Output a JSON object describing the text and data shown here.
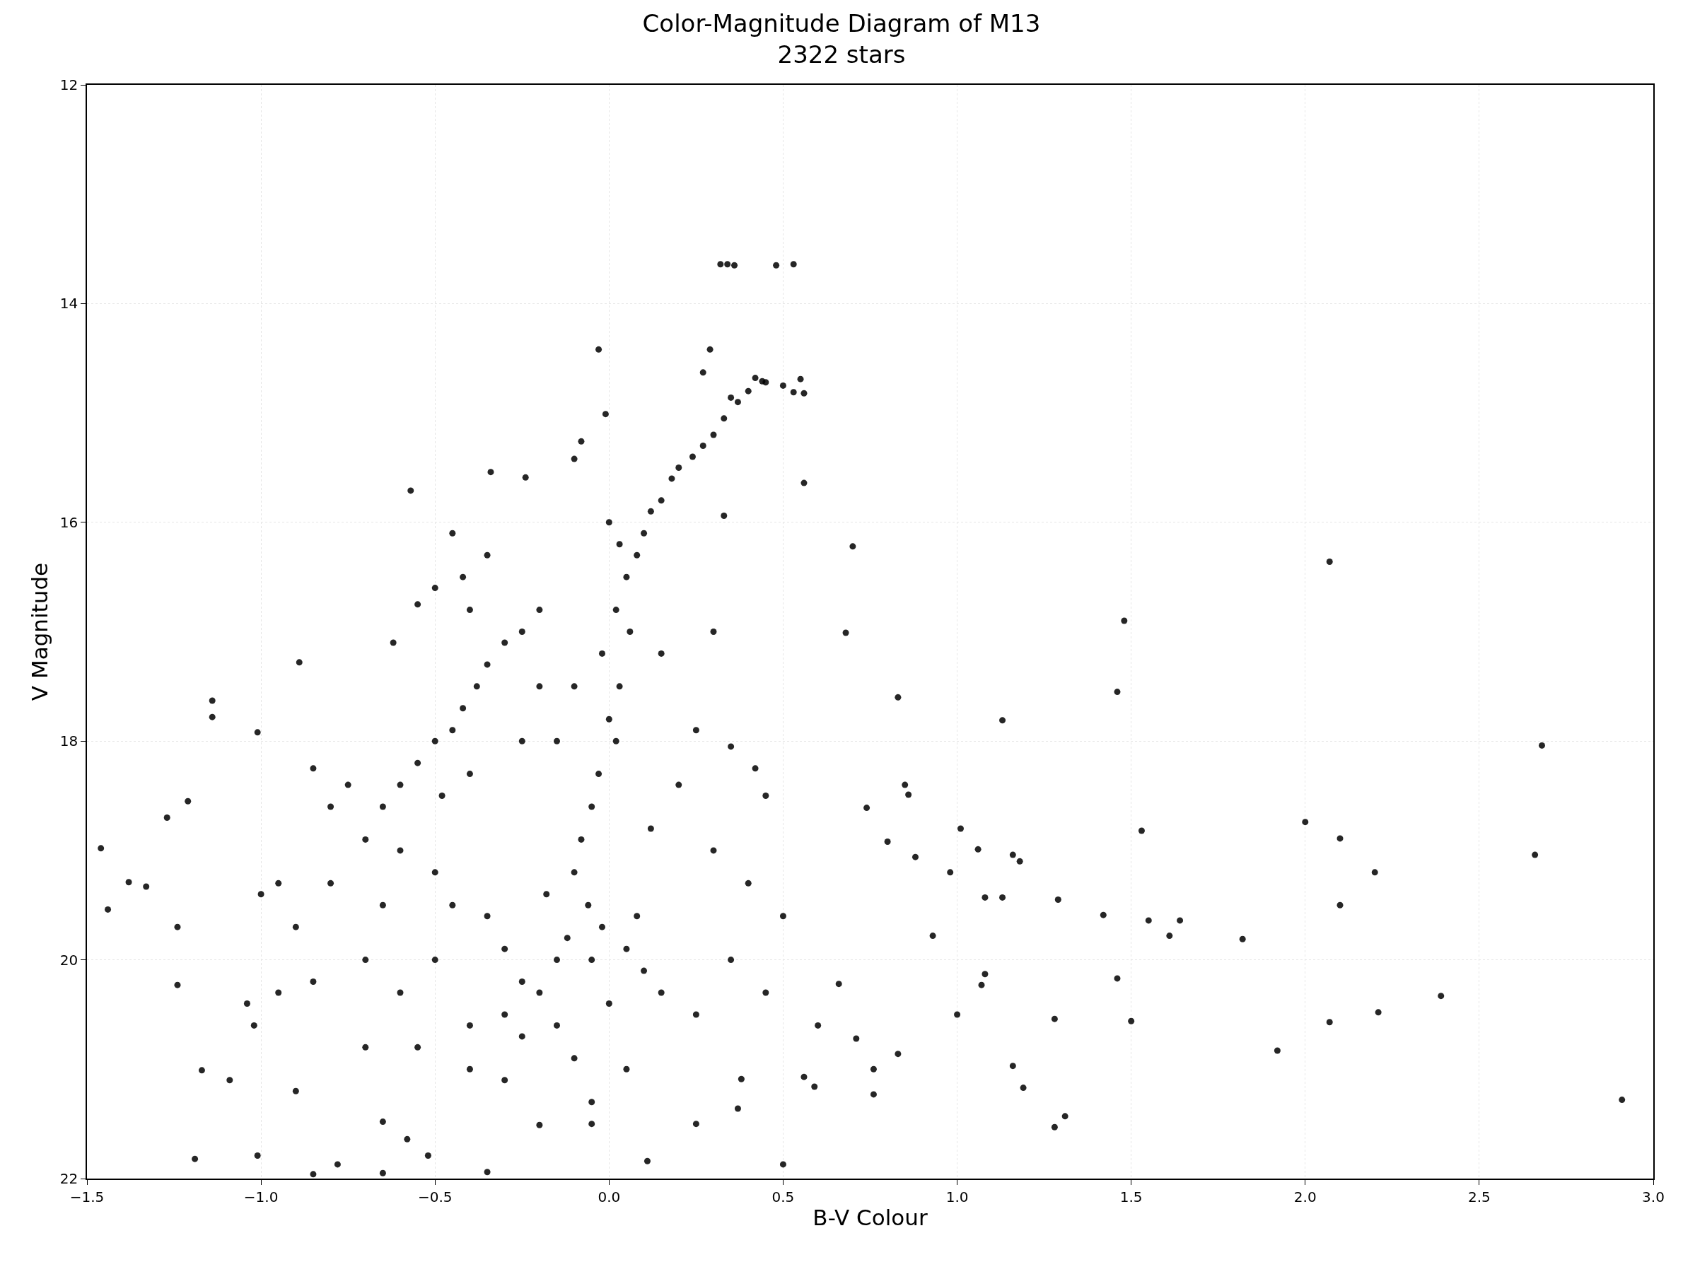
{
  "chart_data": {
    "type": "scatter",
    "title": "Color-Magnitude Diagram of M13",
    "subtitle": "2322 stars",
    "xlabel": "B-V Colour",
    "ylabel": "V Magnitude",
    "xlim": [
      -1.5,
      3.0
    ],
    "ylim": [
      22,
      12
    ],
    "xticks": [
      {
        "value": -1.5,
        "label": "−1.5"
      },
      {
        "value": -1.0,
        "label": "−1.0"
      },
      {
        "value": -0.5,
        "label": "−0.5"
      },
      {
        "value": 0,
        "label": "0.0"
      },
      {
        "value": 0.5,
        "label": "0.5"
      },
      {
        "value": 1.0,
        "label": "1.0"
      },
      {
        "value": 1.5,
        "label": "1.5"
      },
      {
        "value": 2.0,
        "label": "2.0"
      },
      {
        "value": 2.5,
        "label": "2.5"
      },
      {
        "value": 3.0,
        "label": "3.0"
      }
    ],
    "yticks": [
      12,
      14,
      16,
      18,
      20,
      22
    ],
    "grid": true,
    "marker": "circle",
    "series": [
      {
        "color": "#000000",
        "x": [
          0.32,
          0.34,
          0.36,
          0.48,
          0.53,
          -0.03,
          0.29,
          -0.01,
          0.42,
          0.44,
          0.53,
          0.56,
          0.55,
          0.27,
          0.35,
          -0.08,
          -0.1,
          -0.34,
          -0.24,
          -0.57,
          0.56,
          0.33,
          0.7,
          2.07,
          1.48,
          0.68,
          1.46,
          1.13,
          0.83,
          2.68,
          -0.89,
          -1.14,
          -1.14,
          -1.01,
          -1.46,
          -1.44,
          -1.38,
          -1.33,
          -1.27,
          -1.21,
          -1.24,
          -1.24,
          -1.17,
          -1.19,
          -1.09,
          -1.01,
          -0.85,
          -0.78,
          -0.65,
          -0.35,
          0.11,
          -0.58,
          -0.52,
          -0.65,
          -0.2,
          -0.05,
          0.74,
          0.85,
          0.86,
          0.8,
          0.88,
          1.01,
          0.98,
          1.06,
          1.16,
          1.18,
          1.08,
          1.13,
          1.29,
          1.42,
          1.53,
          1.55,
          1.64,
          1.61,
          1.82,
          2.0,
          2.1,
          2.2,
          2.1,
          2.66,
          2.39,
          2.21,
          2.07,
          1.92,
          1.5,
          1.46,
          1.28,
          1.0,
          1.08,
          1.07,
          0.93,
          2.91,
          1.16,
          1.19,
          1.28,
          1.31,
          0.83,
          0.76,
          0.76,
          0.71,
          0.66,
          0.56,
          0.59,
          0.5,
          0.37,
          0.38,
          0.25,
          0.0,
          0.03,
          0.05,
          0.08,
          0.1,
          0.12,
          0.15,
          0.18,
          0.2,
          0.24,
          0.27,
          0.3,
          0.33,
          0.37,
          0.4,
          0.45,
          0.5,
          0.02,
          0.06,
          -0.02,
          0.03,
          0.0,
          0.02,
          -0.03,
          -0.05,
          -0.08,
          -0.1,
          -0.06,
          -0.02,
          0.05,
          -0.12,
          -0.15,
          0.1,
          -0.2,
          0.15,
          -0.3,
          0.25,
          -0.25,
          -0.1,
          0.05,
          -0.05,
          0.0,
          -0.05,
          0.08,
          -0.18,
          0.12,
          0.2,
          -0.15,
          -0.1,
          0.15,
          -0.2,
          -0.25,
          0.3,
          0.25,
          0.35,
          0.42,
          0.45,
          0.3,
          0.4,
          0.5,
          0.35,
          0.45,
          0.6,
          -0.55,
          -0.5,
          -0.45,
          -0.42,
          -0.38,
          -0.35,
          -0.4,
          -0.48,
          -0.6,
          -0.65,
          -0.7,
          -0.6,
          -0.5,
          -0.45,
          -0.5,
          -0.55,
          -0.42,
          -0.35,
          -0.3,
          -0.4,
          -0.2,
          -0.25,
          -0.8,
          -0.9,
          -0.85,
          -0.7,
          -0.6,
          -0.5,
          -0.4,
          -0.55,
          -0.7,
          -0.95,
          -1.0,
          -0.95,
          -0.8,
          -0.75,
          -0.85,
          -0.62,
          -0.35,
          -0.3,
          -0.45,
          -0.25,
          -0.15,
          -0.4,
          -0.3,
          -0.9,
          -1.02,
          -1.04,
          -0.65
        ],
        "values": [
          13.64,
          13.64,
          13.65,
          13.65,
          13.64,
          14.42,
          14.42,
          15.01,
          14.68,
          14.71,
          14.81,
          14.82,
          14.69,
          14.63,
          14.86,
          15.26,
          15.42,
          15.54,
          15.59,
          15.71,
          15.64,
          15.94,
          16.22,
          16.36,
          16.9,
          17.01,
          17.55,
          17.81,
          17.6,
          18.04,
          17.28,
          17.63,
          17.78,
          17.92,
          18.98,
          19.54,
          19.29,
          19.33,
          18.7,
          18.55,
          19.7,
          20.23,
          21.01,
          21.82,
          21.1,
          21.79,
          21.96,
          21.87,
          21.95,
          21.94,
          21.84,
          21.64,
          21.79,
          21.48,
          21.51,
          21.5,
          18.61,
          18.4,
          18.49,
          18.92,
          19.06,
          18.8,
          19.2,
          18.99,
          19.04,
          19.1,
          19.43,
          19.43,
          19.45,
          19.59,
          18.82,
          19.64,
          19.64,
          19.78,
          19.81,
          18.74,
          18.89,
          19.2,
          19.5,
          19.04,
          20.33,
          20.48,
          20.57,
          20.83,
          20.56,
          20.17,
          20.54,
          20.5,
          20.13,
          20.23,
          19.78,
          21.28,
          20.97,
          21.17,
          21.53,
          21.43,
          20.86,
          21.0,
          21.23,
          20.72,
          20.22,
          21.07,
          21.16,
          21.87,
          21.36,
          21.09,
          21.5,
          16.0,
          16.2,
          16.5,
          16.3,
          16.1,
          15.9,
          15.8,
          15.6,
          15.5,
          15.4,
          15.3,
          15.2,
          15.05,
          14.9,
          14.8,
          14.72,
          14.75,
          16.8,
          17.0,
          17.2,
          17.5,
          17.8,
          18.0,
          18.3,
          18.6,
          18.9,
          19.2,
          19.5,
          19.7,
          19.9,
          19.8,
          20.0,
          20.1,
          20.3,
          20.3,
          20.5,
          20.5,
          20.7,
          20.9,
          21.0,
          21.3,
          20.4,
          20.0,
          19.6,
          19.4,
          18.8,
          18.4,
          18.0,
          17.5,
          17.2,
          16.8,
          17.0,
          17.0,
          17.9,
          18.05,
          18.25,
          18.5,
          19.0,
          19.3,
          19.6,
          20.0,
          20.3,
          20.6,
          18.2,
          18.0,
          17.9,
          17.7,
          17.5,
          17.3,
          18.3,
          18.5,
          18.4,
          18.6,
          18.9,
          19.0,
          19.2,
          16.1,
          16.6,
          16.75,
          16.5,
          16.3,
          17.1,
          16.8,
          17.5,
          18.0,
          19.3,
          19.7,
          20.2,
          20.0,
          20.3,
          20.0,
          20.6,
          20.8,
          20.8,
          20.3,
          19.4,
          19.3,
          18.6,
          18.4,
          18.25,
          17.1,
          19.6,
          19.9,
          19.5,
          20.2,
          20.6,
          21.0,
          21.1,
          21.2,
          20.6,
          20.4,
          19.5
        ]
      }
    ]
  }
}
